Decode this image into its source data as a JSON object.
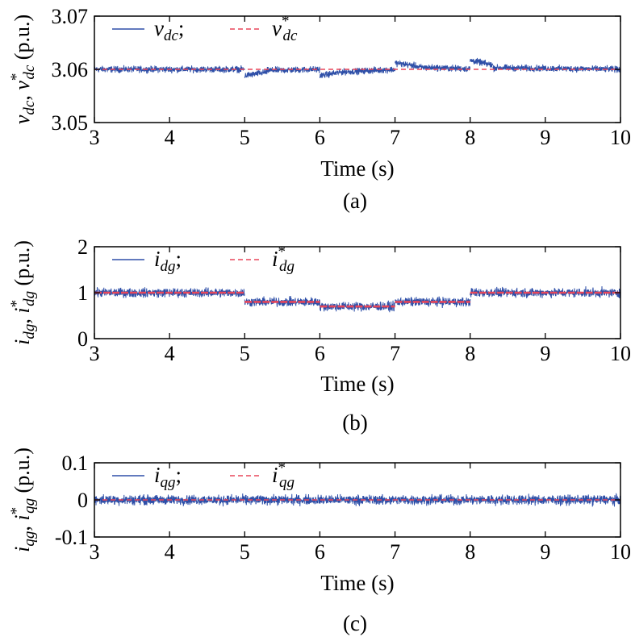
{
  "chart_data": [
    {
      "type": "line",
      "caption": "(a)",
      "xlabel": "Time (s)",
      "ylabel": {
        "base1": "v",
        "sub1": "dc",
        "sep": ", ",
        "base2": "v",
        "sup2": "*",
        "sub2": "dc",
        "unit": " (p.u.)"
      },
      "xlim": [
        3,
        10
      ],
      "ylim": [
        3.05,
        3.07
      ],
      "xticks": [
        "3",
        "4",
        "5",
        "6",
        "7",
        "8",
        "9",
        "10"
      ],
      "yticks": [
        "3.05",
        "3.06",
        "3.07"
      ],
      "legend": [
        {
          "base": "v",
          "sub": "dc",
          "sup": "",
          "after": ";",
          "color": "#2e4fa8",
          "style": "solid"
        },
        {
          "base": "v",
          "sub": "dc",
          "sup": "*",
          "after": "",
          "color": "#e8465a",
          "style": "dashed"
        }
      ],
      "series": [
        {
          "name": "v_dc",
          "noise": 0.00055,
          "segments": [
            {
              "x": [
                3,
                5
              ],
              "y": [
                3.06,
                3.06
              ]
            },
            {
              "x": [
                5,
                5.3
              ],
              "y": [
                3.0588,
                3.0595
              ]
            },
            {
              "x": [
                5.3,
                6
              ],
              "y": [
                3.0598,
                3.06
              ]
            },
            {
              "x": [
                6,
                6.3
              ],
              "y": [
                3.0588,
                3.0595
              ]
            },
            {
              "x": [
                6.3,
                7
              ],
              "y": [
                3.0595,
                3.06
              ]
            },
            {
              "x": [
                7,
                7.3
              ],
              "y": [
                3.0612,
                3.0606
              ]
            },
            {
              "x": [
                7.3,
                8
              ],
              "y": [
                3.0604,
                3.0601
              ]
            },
            {
              "x": [
                8,
                8.3
              ],
              "y": [
                3.0617,
                3.0608
              ]
            },
            {
              "x": [
                8.3,
                10
              ],
              "y": [
                3.0603,
                3.06
              ]
            }
          ]
        },
        {
          "name": "v_dc*",
          "segments": [
            {
              "x": [
                3,
                10
              ],
              "y": [
                3.06,
                3.06
              ]
            }
          ]
        }
      ]
    },
    {
      "type": "line",
      "caption": "(b)",
      "xlabel": "Time (s)",
      "ylabel": {
        "base1": "i",
        "sub1": "dg",
        "sep": ", ",
        "base2": "i",
        "sup2": "*",
        "sub2": "dg",
        "unit": " (p.u.)"
      },
      "xlim": [
        3,
        10
      ],
      "ylim": [
        0,
        2
      ],
      "xticks": [
        "3",
        "4",
        "5",
        "6",
        "7",
        "8",
        "9",
        "10"
      ],
      "yticks": [
        "0",
        "1",
        "2"
      ],
      "legend": [
        {
          "base": "i",
          "sub": "dg",
          "sup": "",
          "after": ";",
          "color": "#2e4fa8",
          "style": "solid"
        },
        {
          "base": "i",
          "sub": "dg",
          "sup": "*",
          "after": "",
          "color": "#e8465a",
          "style": "dashed"
        }
      ],
      "series": [
        {
          "name": "i_dg",
          "noise": 0.09,
          "segments": [
            {
              "x": [
                3,
                5
              ],
              "y": [
                1.0,
                1.0
              ]
            },
            {
              "x": [
                5,
                6
              ],
              "y": [
                0.8,
                0.8
              ]
            },
            {
              "x": [
                6,
                7
              ],
              "y": [
                0.7,
                0.7
              ]
            },
            {
              "x": [
                7,
                8
              ],
              "y": [
                0.8,
                0.8
              ]
            },
            {
              "x": [
                8,
                10
              ],
              "y": [
                1.0,
                1.0
              ]
            }
          ]
        },
        {
          "name": "i_dg*",
          "segments": [
            {
              "x": [
                3,
                5
              ],
              "y": [
                1.0,
                1.0
              ]
            },
            {
              "x": [
                5,
                6
              ],
              "y": [
                0.8,
                0.8
              ]
            },
            {
              "x": [
                6,
                7
              ],
              "y": [
                0.7,
                0.7
              ]
            },
            {
              "x": [
                7,
                8
              ],
              "y": [
                0.8,
                0.8
              ]
            },
            {
              "x": [
                8,
                10
              ],
              "y": [
                1.0,
                1.0
              ]
            }
          ]
        }
      ]
    },
    {
      "type": "line",
      "caption": "(c)",
      "xlabel": "Time (s)",
      "ylabel": {
        "base1": "i",
        "sub1": "qg",
        "sep": ", ",
        "base2": "i",
        "sup2": "*",
        "sub2": "qg",
        "unit": " (p.u.)"
      },
      "xlim": [
        3,
        10
      ],
      "ylim": [
        -0.1,
        0.1
      ],
      "xticks": [
        "3",
        "4",
        "5",
        "6",
        "7",
        "8",
        "9",
        "10"
      ],
      "yticks": [
        "-0.1",
        "0",
        "0.1"
      ],
      "legend": [
        {
          "base": "i",
          "sub": "qg",
          "sup": "",
          "after": ";",
          "color": "#2e4fa8",
          "style": "solid"
        },
        {
          "base": "i",
          "sub": "qg",
          "sup": "*",
          "after": "",
          "color": "#e8465a",
          "style": "dashed"
        }
      ],
      "series": [
        {
          "name": "i_qg",
          "noise": 0.012,
          "segments": [
            {
              "x": [
                3,
                10
              ],
              "y": [
                0,
                0
              ]
            }
          ]
        },
        {
          "name": "i_qg*",
          "segments": [
            {
              "x": [
                3,
                10
              ],
              "y": [
                0,
                0
              ]
            }
          ]
        }
      ]
    }
  ]
}
